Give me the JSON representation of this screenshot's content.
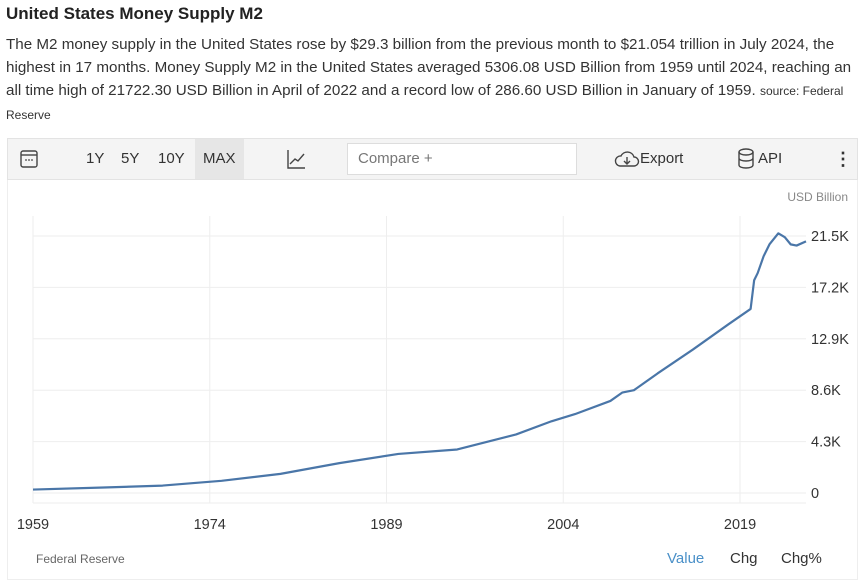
{
  "title": "United States Money Supply M2",
  "description": "The M2 money supply in the United States rose by $29.3 billion from the previous month to $21.054 trillion in July 2024, the highest in 17 months. Money Supply M2 in the United States averaged 5306.08 USD Billion from 1959 until 2024, reaching an all time high of 21722.30 USD Billion in April of 2022 and a record low of 286.60 USD Billion in January of 1959.",
  "source_label": "source: Federal Reserve",
  "toolbar": {
    "ranges": [
      "1Y",
      "5Y",
      "10Y",
      "MAX"
    ],
    "active_range": "MAX",
    "compare_placeholder": "Compare +",
    "export": "Export",
    "api": "API"
  },
  "footer": {
    "source": "Federal Reserve",
    "tabs": [
      "Value",
      "Chg",
      "Chg%"
    ],
    "active_tab": "Value"
  },
  "colors": {
    "line": "#4a76a8",
    "active_tab": "#4a90c8"
  },
  "chart_data": {
    "type": "line",
    "unit_label": "USD Billion",
    "xlim": [
      1959,
      2024.6
    ],
    "ylim": [
      0,
      21500
    ],
    "x_ticks": [
      1959,
      1974,
      1989,
      2004,
      2019
    ],
    "y_ticks": [
      {
        "v": 0,
        "label": "0"
      },
      {
        "v": 4300,
        "label": "4.3K"
      },
      {
        "v": 8600,
        "label": "8.6K"
      },
      {
        "v": 12900,
        "label": "12.9K"
      },
      {
        "v": 17200,
        "label": "17.2K"
      },
      {
        "v": 21500,
        "label": "21.5K"
      }
    ],
    "series": [
      {
        "name": "Money Supply M2",
        "x": [
          1959,
          1965,
          1970,
          1975,
          1980,
          1985,
          1990,
          1995,
          2000,
          2003,
          2005,
          2008,
          2009,
          2010,
          2012,
          2015,
          2018,
          2019.9,
          2020.2,
          2020.5,
          2021,
          2021.5,
          2022.25,
          2022.8,
          2023.3,
          2023.8,
          2024.6
        ],
        "y": [
          287,
          460,
          620,
          1020,
          1600,
          2500,
          3270,
          3640,
          4900,
          6000,
          6600,
          7700,
          8400,
          8600,
          10000,
          12000,
          14100,
          15400,
          17800,
          18400,
          19800,
          20800,
          21722,
          21400,
          20800,
          20700,
          21054
        ]
      }
    ]
  }
}
